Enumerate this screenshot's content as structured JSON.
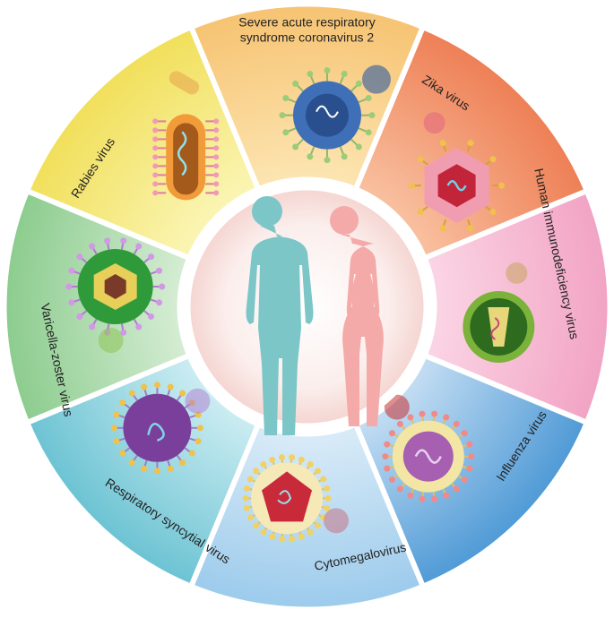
{
  "segments": [
    {
      "key": "sarscov2",
      "line1": "Severe acute respiratory",
      "line2": "syndrome coronavirus 2",
      "color_in": "#fde6b4",
      "color_out": "#f6c372",
      "icon": "coronavirus-icon"
    },
    {
      "key": "zika",
      "line1": "Zika virus",
      "line2": "",
      "color_in": "#f9c3a3",
      "color_out": "#ee7f55",
      "icon": "zika-virus-icon"
    },
    {
      "key": "hiv",
      "line1": "Human immunodeficiency virus",
      "line2": "",
      "color_in": "#fbd7e6",
      "color_out": "#f2a3c4",
      "icon": "hiv-icon"
    },
    {
      "key": "influenza",
      "line1": "Influenza virus",
      "line2": "",
      "color_in": "#c8e0f4",
      "color_out": "#4f9ad6",
      "icon": "influenza-virus-icon"
    },
    {
      "key": "cmv",
      "line1": "Cytomegalovirus",
      "line2": "",
      "color_in": "#dcecf8",
      "color_out": "#9ccbec",
      "icon": "cytomegalovirus-icon"
    },
    {
      "key": "rsv",
      "line1": "Respiratory syncytial virus",
      "line2": "",
      "color_in": "#cfeef3",
      "color_out": "#6cc3d3",
      "icon": "rsv-icon"
    },
    {
      "key": "vzv",
      "line1": "Varicella-zoster virus",
      "line2": "",
      "color_in": "#d8eed6",
      "color_out": "#8ccc8e",
      "icon": "varicella-zoster-icon"
    },
    {
      "key": "rabies",
      "line1": "Rabies virus",
      "line2": "",
      "color_in": "#fbf6b8",
      "color_out": "#f1df5a",
      "icon": "rabies-virus-icon"
    }
  ],
  "center": {
    "male_color": "#7cc6c8",
    "female_color": "#f4aaa8",
    "bg": "#f5d6d2"
  }
}
